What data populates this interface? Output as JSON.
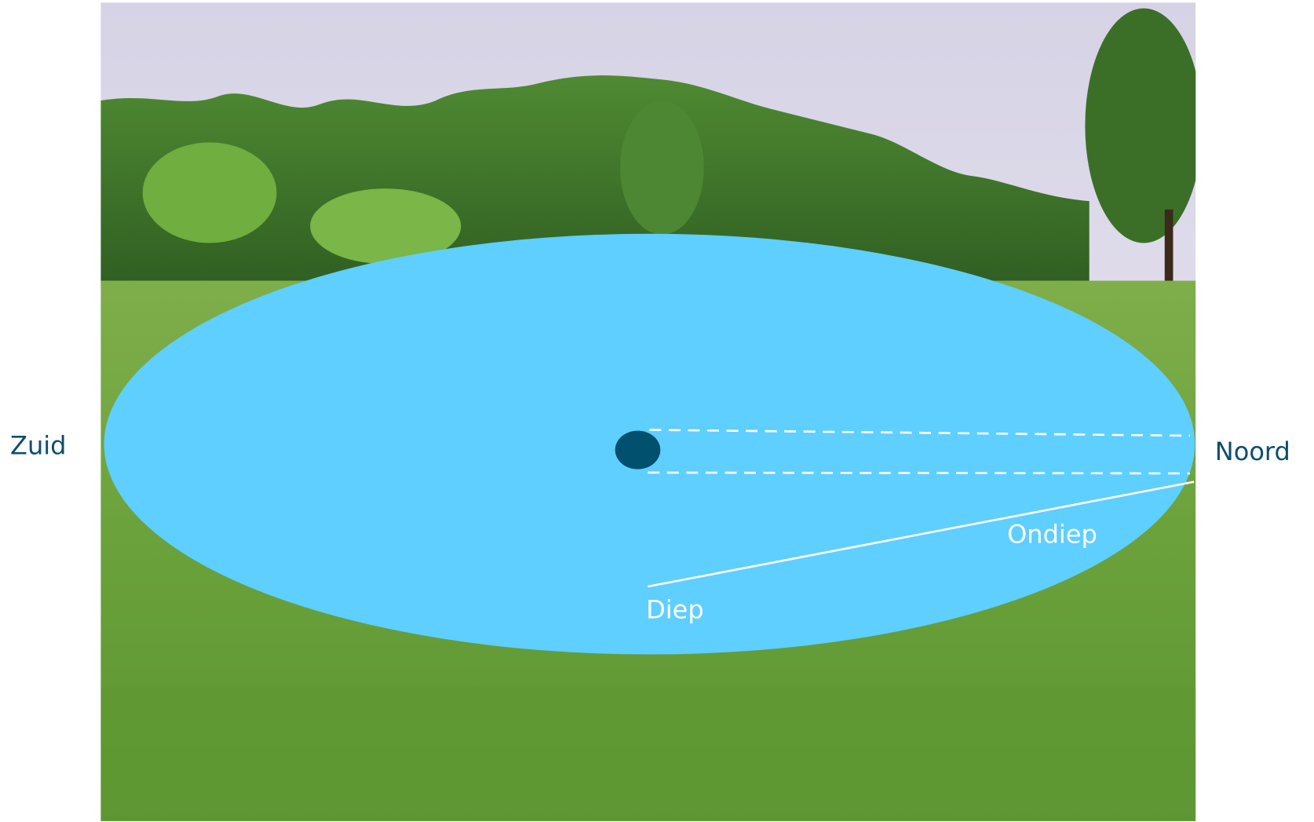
{
  "labels": {
    "south": "Zuid",
    "north": "Noord",
    "shallow": "Ondiep",
    "deep": "Diep"
  }
}
